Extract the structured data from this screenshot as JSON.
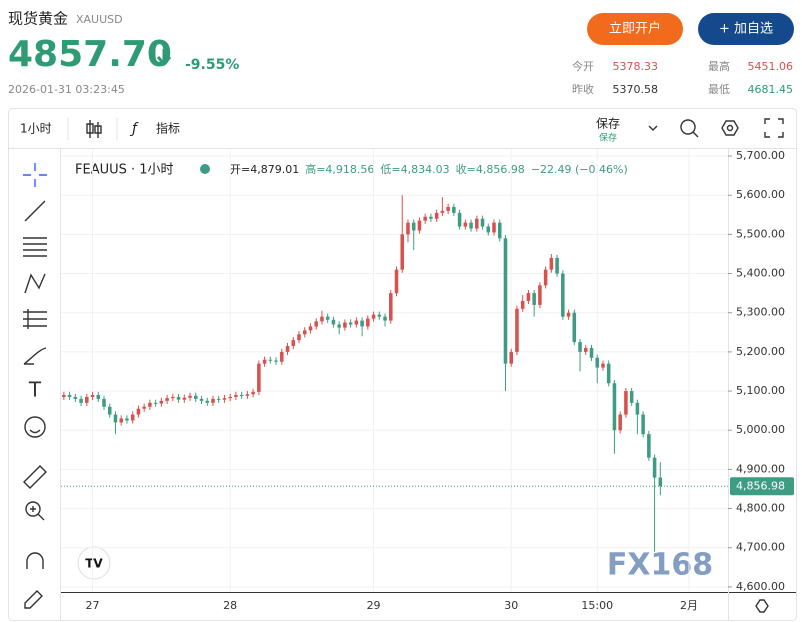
{
  "header": {
    "title": "现货黄金",
    "symbol": "XAUUSD",
    "price": "4857.70",
    "change": "-9.55%",
    "datetime": "2026-01-31 03:23:45",
    "buttons": [
      "立即开户",
      "+ 加自选"
    ],
    "stats": [
      {
        "label": "今开",
        "value": "5378.33"
      },
      {
        "label": "最高",
        "value": "5451.06"
      },
      {
        "label": "昨收",
        "value": "5370.58"
      },
      {
        "label": "最低",
        "value": "4681.45"
      }
    ]
  },
  "toolbar": {
    "interval": "1小时",
    "indicators": "指标",
    "save": "保存",
    "save_sub": "保存"
  },
  "watermark": "FX168",
  "chart_data": {
    "type": "candlestick",
    "legend": "FEAUUS · 1小时",
    "ohlc_text": [
      "开=4,879.01",
      "高=4,918.56",
      "低=4,834.03",
      "收=4,856.98",
      "−22.49 (−0.46%)"
    ],
    "up_color": "#d9514e",
    "down_color": "#3f9c84",
    "grid": true,
    "xlim": [
      -0.5,
      115.8
    ],
    "ylim": [
      4587,
      5718
    ],
    "xticks": [
      {
        "value": 5,
        "label": "27"
      },
      {
        "value": 29,
        "label": "28"
      },
      {
        "value": 54,
        "label": "29"
      },
      {
        "value": 78,
        "label": "30"
      },
      {
        "value": 93,
        "label": "15:00"
      },
      {
        "value": 109,
        "label": "2月"
      }
    ],
    "yticks": [
      {
        "value": 5700,
        "label": "5,700.00"
      },
      {
        "value": 5600,
        "label": "5,600.00"
      },
      {
        "value": 5500,
        "label": "5,500.00"
      },
      {
        "value": 5400,
        "label": "5,400.00"
      },
      {
        "value": 5300,
        "label": "5,300.00"
      },
      {
        "value": 5200,
        "label": "5,200.00"
      },
      {
        "value": 5100,
        "label": "5,100.00"
      },
      {
        "value": 5000,
        "label": "5,000.00"
      },
      {
        "value": 4900,
        "label": "4,900.00"
      },
      {
        "value": 4800,
        "label": "4,800.00"
      },
      {
        "value": 4700,
        "label": "4,700.00"
      },
      {
        "value": 4600,
        "label": "4,600.00"
      }
    ],
    "last_price": {
      "value": 4856.98,
      "label": "4,856.98"
    },
    "open": [
      5085,
      5090,
      5085,
      5080,
      5070,
      5085,
      5090,
      5080,
      5060,
      5040,
      5020,
      5030,
      5025,
      5040,
      5055,
      5060,
      5070,
      5068,
      5075,
      5082,
      5085,
      5078,
      5083,
      5088,
      5080,
      5075,
      5070,
      5080,
      5078,
      5082,
      5085,
      5090,
      5088,
      5092,
      5098,
      5170,
      5180,
      5178,
      5175,
      5200,
      5215,
      5230,
      5245,
      5255,
      5265,
      5278,
      5290,
      5282,
      5270,
      5262,
      5275,
      5270,
      5280,
      5265,
      5285,
      5295,
      5290,
      5280,
      5350,
      5410,
      5500,
      5530,
      5510,
      5535,
      5545,
      5540,
      5555,
      5560,
      5570,
      5555,
      5520,
      5530,
      5515,
      5540,
      5520,
      5505,
      5530,
      5490,
      5170,
      5200,
      5310,
      5330,
      5350,
      5320,
      5370,
      5410,
      5440,
      5400,
      5290,
      5300,
      5225,
      5200,
      5210,
      5185,
      5160,
      5170,
      5120,
      5000,
      5040,
      5100,
      5070,
      5040,
      4990,
      4930,
      4879.01
    ],
    "close": [
      5090,
      5085,
      5080,
      5070,
      5085,
      5090,
      5080,
      5060,
      5040,
      5020,
      5030,
      5025,
      5040,
      5055,
      5060,
      5070,
      5068,
      5075,
      5082,
      5085,
      5078,
      5083,
      5088,
      5080,
      5075,
      5070,
      5080,
      5078,
      5082,
      5085,
      5090,
      5088,
      5092,
      5098,
      5170,
      5180,
      5178,
      5175,
      5200,
      5215,
      5230,
      5245,
      5255,
      5265,
      5278,
      5290,
      5282,
      5270,
      5262,
      5275,
      5270,
      5280,
      5265,
      5285,
      5295,
      5290,
      5280,
      5350,
      5410,
      5500,
      5530,
      5510,
      5535,
      5545,
      5540,
      5555,
      5560,
      5570,
      5555,
      5520,
      5530,
      5515,
      5540,
      5520,
      5505,
      5530,
      5490,
      5170,
      5200,
      5310,
      5330,
      5350,
      5320,
      5370,
      5410,
      5440,
      5400,
      5290,
      5300,
      5225,
      5200,
      5210,
      5185,
      5160,
      5170,
      5120,
      5000,
      5040,
      5100,
      5070,
      5040,
      4990,
      4930,
      4879,
      4856.98
    ],
    "high": [
      5098,
      5098,
      5093,
      5088,
      5093,
      5098,
      5098,
      5088,
      5068,
      5048,
      5038,
      5038,
      5048,
      5063,
      5068,
      5078,
      5078,
      5083,
      5090,
      5093,
      5093,
      5091,
      5096,
      5096,
      5088,
      5083,
      5088,
      5088,
      5090,
      5093,
      5098,
      5098,
      5100,
      5106,
      5178,
      5188,
      5188,
      5186,
      5208,
      5223,
      5238,
      5253,
      5263,
      5273,
      5286,
      5305,
      5298,
      5290,
      5278,
      5283,
      5283,
      5288,
      5288,
      5293,
      5303,
      5303,
      5298,
      5358,
      5418,
      5600,
      5538,
      5538,
      5543,
      5553,
      5553,
      5563,
      5595,
      5578,
      5578,
      5563,
      5538,
      5538,
      5548,
      5548,
      5528,
      5538,
      5538,
      5498,
      5208,
      5318,
      5345,
      5358,
      5358,
      5378,
      5418,
      5450,
      5448,
      5408,
      5308,
      5308,
      5233,
      5218,
      5218,
      5193,
      5178,
      5178,
      5128,
      5048,
      5108,
      5108,
      5078,
      5048,
      4998,
      4938,
      4918.56
    ],
    "low": [
      5077,
      5077,
      5072,
      5062,
      5062,
      5077,
      5072,
      5052,
      5032,
      4990,
      5012,
      5017,
      5017,
      5032,
      5047,
      5052,
      5060,
      5060,
      5067,
      5074,
      5070,
      5070,
      5075,
      5072,
      5067,
      5062,
      5062,
      5070,
      5070,
      5074,
      5077,
      5080,
      5080,
      5084,
      5090,
      5162,
      5170,
      5167,
      5167,
      5192,
      5207,
      5222,
      5237,
      5247,
      5257,
      5270,
      5274,
      5262,
      5245,
      5254,
      5262,
      5262,
      5240,
      5257,
      5277,
      5282,
      5265,
      5272,
      5342,
      5402,
      5480,
      5460,
      5502,
      5527,
      5532,
      5532,
      5547,
      5552,
      5547,
      5512,
      5512,
      5507,
      5507,
      5512,
      5497,
      5497,
      5482,
      5100,
      5162,
      5192,
      5302,
      5322,
      5290,
      5312,
      5362,
      5402,
      5392,
      5282,
      5282,
      5217,
      5150,
      5192,
      5177,
      5120,
      5152,
      5112,
      4940,
      4992,
      5032,
      5062,
      4990,
      4982,
      4922,
      4690,
      4834.03
    ]
  }
}
